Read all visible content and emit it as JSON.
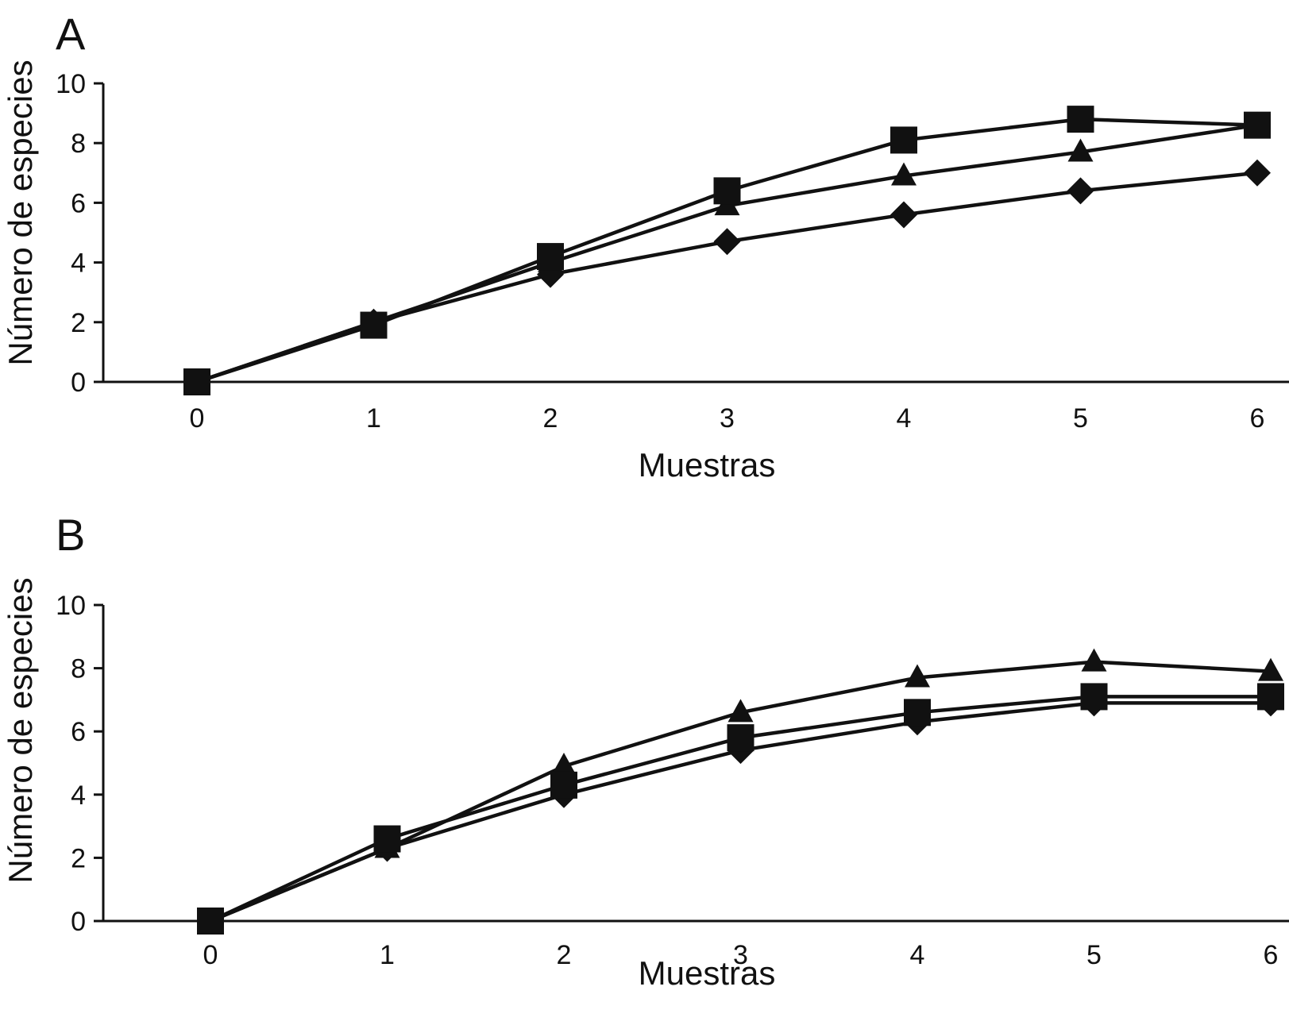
{
  "chart_data": [
    {
      "panel_label": "A",
      "type": "line",
      "xlabel": "Muestras",
      "ylabel": "Número de especies",
      "x": [
        0,
        1,
        2,
        3,
        4,
        5,
        6
      ],
      "xticks": [
        "0",
        "1",
        "2",
        "3",
        "4",
        "5",
        "6"
      ],
      "yticks": [
        "0",
        "2",
        "4",
        "6",
        "8",
        "10"
      ],
      "xlim": [
        0,
        6
      ],
      "ylim": [
        0,
        10
      ],
      "grid": false,
      "series": [
        {
          "marker": "square",
          "values": [
            0,
            1.9,
            4.2,
            6.4,
            8.1,
            8.8,
            8.6
          ]
        },
        {
          "marker": "triangle",
          "values": [
            0,
            2.0,
            4.0,
            5.9,
            6.9,
            7.7,
            8.6
          ]
        },
        {
          "marker": "diamond",
          "values": [
            0,
            2.0,
            3.6,
            4.7,
            5.6,
            6.4,
            7.0
          ]
        }
      ]
    },
    {
      "panel_label": "B",
      "type": "line",
      "xlabel": "Muestras",
      "ylabel": "Número de especies",
      "x": [
        0,
        1,
        2,
        3,
        4,
        5,
        6
      ],
      "xticks": [
        "0",
        "1",
        "2",
        "3",
        "4",
        "5",
        "6"
      ],
      "yticks": [
        "0",
        "2",
        "4",
        "6",
        "8",
        "10"
      ],
      "xlim": [
        0,
        6
      ],
      "ylim": [
        0,
        10
      ],
      "grid": false,
      "series": [
        {
          "marker": "triangle",
          "values": [
            0,
            2.3,
            4.9,
            6.6,
            7.7,
            8.2,
            7.9
          ]
        },
        {
          "marker": "square",
          "values": [
            0,
            2.6,
            4.3,
            5.8,
            6.6,
            7.1,
            7.1
          ]
        },
        {
          "marker": "diamond",
          "values": [
            0,
            2.3,
            4.0,
            5.4,
            6.3,
            6.9,
            6.9
          ]
        }
      ]
    }
  ]
}
